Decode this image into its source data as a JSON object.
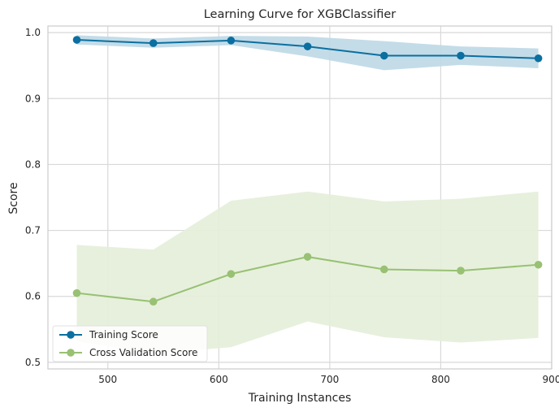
{
  "chart_data": {
    "type": "line",
    "title": "Learning Curve for XGBClassifier",
    "xlabel": "Training Instances",
    "ylabel": "Score",
    "xlim": [
      446,
      900
    ],
    "ylim": [
      0.49,
      1.01
    ],
    "xticks": [
      500,
      600,
      700,
      800,
      900
    ],
    "yticks": [
      0.5,
      0.6,
      0.7,
      0.8,
      0.9,
      1.0
    ],
    "ytick_labels": [
      "0.5",
      "0.6",
      "0.7",
      "0.8",
      "0.9",
      "1.0"
    ],
    "grid": true,
    "legend_position": "lower-left",
    "x": [
      472,
      541,
      611,
      680,
      749,
      818,
      888
    ],
    "series": [
      {
        "name": "Training Score",
        "color": "#0b6fa0",
        "band_color": "#bcd8e6",
        "values": [
          0.989,
          0.984,
          0.988,
          0.979,
          0.965,
          0.965,
          0.961
        ],
        "lower": [
          0.982,
          0.977,
          0.981,
          0.964,
          0.943,
          0.951,
          0.946
        ],
        "upper": [
          0.996,
          0.991,
          0.995,
          0.994,
          0.987,
          0.979,
          0.976
        ]
      },
      {
        "name": "Cross Validation Score",
        "color": "#98c173",
        "band_color": "#e4eed9",
        "values": [
          0.605,
          0.592,
          0.634,
          0.66,
          0.641,
          0.639,
          0.648
        ],
        "lower": [
          0.532,
          0.513,
          0.523,
          0.562,
          0.538,
          0.53,
          0.537
        ],
        "upper": [
          0.678,
          0.671,
          0.745,
          0.759,
          0.744,
          0.748,
          0.759
        ]
      }
    ]
  }
}
